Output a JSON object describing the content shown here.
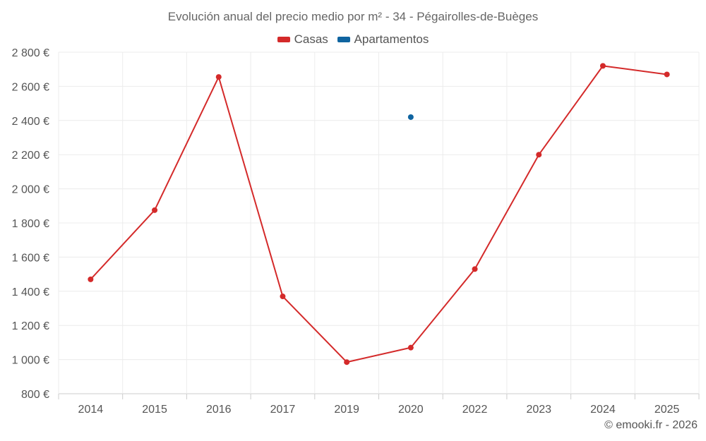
{
  "chart_data": {
    "type": "line",
    "title": "Evolución anual del precio medio por m² - 34 - Pégairolles-de-Buèges",
    "categories": [
      "2014",
      "2015",
      "2016",
      "2017",
      "2019",
      "2020",
      "2022",
      "2023",
      "2024",
      "2025"
    ],
    "y_ticks": [
      "800 €",
      "1 000 €",
      "1 200 €",
      "1 400 €",
      "1 600 €",
      "1 800 €",
      "2 000 €",
      "2 200 €",
      "2 400 €",
      "2 600 €",
      "2 800 €"
    ],
    "ylim": [
      800,
      2800
    ],
    "grid": true,
    "series": [
      {
        "name": "Casas",
        "color": "#d42a2a",
        "values": [
          1470,
          1875,
          2655,
          1370,
          985,
          1070,
          1530,
          2200,
          2720,
          2670
        ]
      },
      {
        "name": "Apartamentos",
        "color": "#0f64a0",
        "values": [
          null,
          null,
          null,
          null,
          null,
          2420,
          null,
          null,
          null,
          null
        ]
      }
    ]
  },
  "footer": {
    "credit": "© emooki.fr - 2026"
  }
}
